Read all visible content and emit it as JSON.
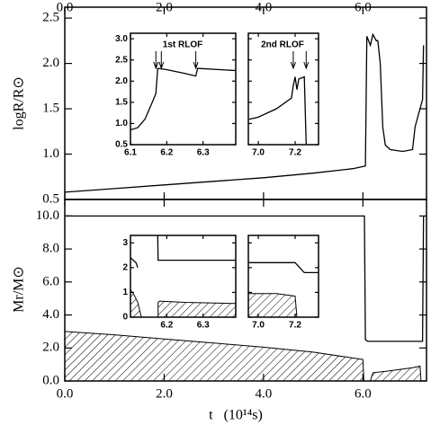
{
  "chart_data": [
    {
      "type": "line",
      "ylabel": "logR/R⊙",
      "xlim": [
        0,
        7.28
      ],
      "ylim": [
        0.5,
        2.62
      ],
      "xticks": [
        {
          "value": 0,
          "label": "0.0"
        },
        {
          "value": 2,
          "label": "2.0"
        },
        {
          "value": 4,
          "label": "4.0"
        },
        {
          "value": 6,
          "label": "6.0"
        }
      ],
      "yticks": [
        0.5,
        {
          "value": 1,
          "label": "1.0"
        },
        1.5,
        {
          "value": 2,
          "label": "2.0"
        },
        2.5
      ],
      "xtick_labels": "top",
      "ytick_labels": true,
      "series": [
        {
          "style": "line",
          "x": [
            0,
            1,
            2,
            3,
            4,
            5,
            5.8,
            6.05,
            6.08,
            6.15,
            6.2,
            6.27,
            6.3,
            6.35,
            6.4,
            6.45,
            6.55,
            6.8,
            7.0,
            7.05,
            7.15,
            7.2,
            7.22
          ],
          "values": [
            0.58,
            0.62,
            0.66,
            0.7,
            0.74,
            0.79,
            0.84,
            0.87,
            2.3,
            2.2,
            2.32,
            2.25,
            2.25,
            2.0,
            1.3,
            1.1,
            1.05,
            1.03,
            1.05,
            1.3,
            1.5,
            1.6,
            2.2
          ]
        }
      ]
    },
    {
      "type": "line",
      "ylabel": "Mr/M⊙",
      "xlabel": "t   (10¹⁴s)",
      "xlim": [
        0,
        7.28
      ],
      "ylim": [
        0,
        11
      ],
      "xticks": [
        {
          "value": 0,
          "label": "0.0"
        },
        {
          "value": 2,
          "label": "2.0"
        },
        {
          "value": 4,
          "label": "4.0"
        },
        {
          "value": 6,
          "label": "6.0"
        }
      ],
      "yticks": [
        {
          "value": 0,
          "label": "0.0"
        },
        {
          "value": 2,
          "label": "2.0"
        },
        {
          "value": 4,
          "label": "4.0"
        },
        {
          "value": 6,
          "label": "6.0"
        },
        {
          "value": 8,
          "label": "8.0"
        },
        {
          "value": 10,
          "label": "10.0"
        }
      ],
      "xtick_labels": "bottom",
      "ytick_labels": true,
      "series": [
        {
          "style": "hatched",
          "x": [
            0,
            1,
            2,
            3,
            4,
            5,
            6,
            6.02
          ],
          "values": [
            3.0,
            2.8,
            2.55,
            2.3,
            2.05,
            1.75,
            1.3,
            0
          ]
        },
        {
          "style": "hatched",
          "x": [
            6.15,
            6.2,
            6.5,
            7.0,
            7.15,
            7.17
          ],
          "values": [
            0,
            0.5,
            0.6,
            0.8,
            0.9,
            0
          ]
        },
        {
          "style": "line",
          "x": [
            0,
            6.03,
            6.05,
            6.1,
            7.2,
            7.22
          ],
          "values": [
            10,
            10,
            2.5,
            2.4,
            2.4,
            10
          ]
        }
      ]
    },
    {
      "type": "line",
      "xlim": [
        6.1,
        6.39
      ],
      "ylim": [
        0.5,
        3.13
      ],
      "xticks": [
        6.1,
        6.2,
        6.3
      ],
      "yticks": [
        0.5,
        {
          "value": 1,
          "label": "1.0"
        },
        1.5,
        {
          "value": 2,
          "label": "2.0"
        },
        2.5,
        {
          "value": 3,
          "label": "3.0"
        }
      ],
      "xtick_labels": "bottom",
      "ytick_labels": true,
      "annotations": [
        "1st RLOF"
      ],
      "arrows": [
        6.17,
        6.185,
        6.28
      ],
      "series": [
        {
          "style": "line",
          "x": [
            6.1,
            6.12,
            6.14,
            6.16,
            6.17,
            6.175,
            6.2,
            6.25,
            6.28,
            6.285,
            6.39
          ],
          "values": [
            0.85,
            0.9,
            1.1,
            1.5,
            1.7,
            2.3,
            2.27,
            2.18,
            2.12,
            2.3,
            2.25
          ]
        }
      ]
    },
    {
      "type": "line",
      "xlim": [
        6.946,
        7.327
      ],
      "ylim": [
        0.5,
        3.13
      ],
      "xticks": [
        {
          "value": 7,
          "label": "7.0"
        },
        7.2
      ],
      "yticks": [
        0.5,
        {
          "value": 1,
          "label": "1.0"
        },
        1.5,
        {
          "value": 2,
          "label": "2.0"
        },
        2.5,
        {
          "value": 3,
          "label": "3.0"
        }
      ],
      "xtick_labels": "bottom",
      "ytick_labels": false,
      "annotations": [
        "2nd RLOF"
      ],
      "arrows": [
        7.19,
        7.26
      ],
      "series": [
        {
          "style": "line",
          "x": [
            6.95,
            7.0,
            7.1,
            7.18,
            7.19,
            7.2,
            7.21,
            7.22,
            7.25,
            7.26
          ],
          "values": [
            1.1,
            1.15,
            1.35,
            1.6,
            1.9,
            2.1,
            1.8,
            2.05,
            2.1,
            0.5
          ]
        }
      ]
    },
    {
      "type": "line",
      "xlim": [
        6.1,
        6.39
      ],
      "ylim": [
        0,
        3.3
      ],
      "xticks": [
        6.2,
        6.3
      ],
      "yticks": [
        0,
        1,
        2,
        3
      ],
      "xtick_labels": "bottom",
      "ytick_labels": true,
      "series": [
        {
          "style": "hatched",
          "x": [
            6.1,
            6.11,
            6.12,
            6.13
          ],
          "values": [
            1.1,
            0.9,
            0.6,
            0
          ]
        },
        {
          "style": "hatched",
          "x": [
            6.176,
            6.18,
            6.25,
            6.39
          ],
          "values": [
            0.6,
            0.65,
            0.6,
            0.55
          ]
        },
        {
          "style": "line",
          "x": [
            6.1,
            6.115,
            6.12,
            null,
            6.175,
            6.176,
            6.19,
            6.39
          ],
          "values": [
            2.4,
            2.2,
            2.0,
            null,
            3.3,
            2.3,
            2.3,
            2.3
          ]
        }
      ]
    },
    {
      "type": "line",
      "xlim": [
        6.946,
        7.327
      ],
      "ylim": [
        0,
        3.3
      ],
      "xticks": [
        {
          "value": 7,
          "label": "7.0"
        },
        7.2
      ],
      "yticks": [
        0,
        1,
        2,
        3
      ],
      "xtick_labels": "bottom",
      "ytick_labels": false,
      "series": [
        {
          "style": "hatched",
          "x": [
            6.946,
            7.1,
            7.2,
            7.21
          ],
          "values": [
            0.95,
            0.95,
            0.85,
            0
          ]
        },
        {
          "style": "line",
          "x": [
            6.946,
            7.2,
            7.25,
            7.327
          ],
          "values": [
            2.2,
            2.2,
            1.8,
            1.8
          ]
        }
      ]
    }
  ]
}
